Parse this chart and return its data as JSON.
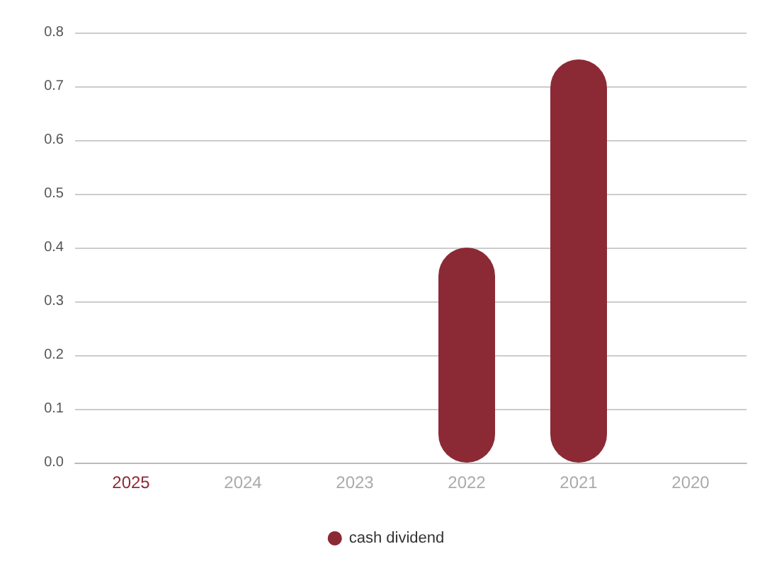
{
  "chart_data": {
    "type": "bar",
    "categories": [
      "2025",
      "2024",
      "2023",
      "2022",
      "2021",
      "2020"
    ],
    "series": [
      {
        "name": "cash dividend",
        "color": "#8b2a35",
        "values": [
          null,
          null,
          null,
          0.4,
          0.75,
          null
        ]
      }
    ],
    "ylim": [
      0,
      0.8
    ],
    "yticks": [
      {
        "value": 0,
        "label": "0.0"
      },
      0.1,
      0.2,
      0.3,
      0.4,
      0.5,
      0.6,
      0.7,
      0.8
    ],
    "grid": "y",
    "legend": "bottom"
  }
}
